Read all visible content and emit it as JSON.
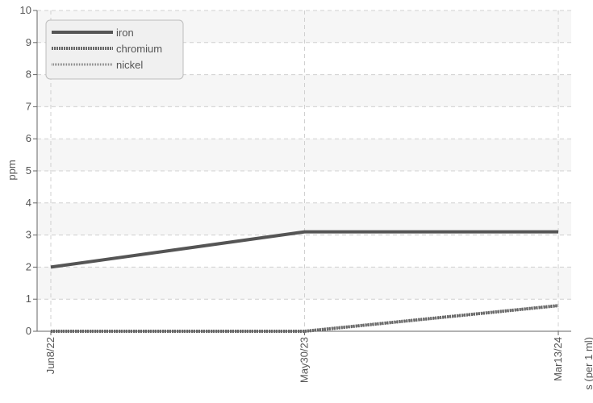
{
  "chart_data": {
    "type": "line",
    "title": "",
    "xlabel": "s (per 1 ml)",
    "ylabel": "ppm",
    "categories": [
      "Jun8/22",
      "May30/23",
      "Mar13/24"
    ],
    "ylim": [
      0,
      10
    ],
    "yticks": [
      0,
      1,
      2,
      3,
      4,
      5,
      6,
      7,
      8,
      9,
      10
    ],
    "grid": true,
    "legend_position": "top-left",
    "series": [
      {
        "name": "iron",
        "values": [
          2,
          3.1,
          3.1
        ],
        "color": "#555555",
        "style": "solid"
      },
      {
        "name": "chromium",
        "values": [
          0,
          0,
          0.8
        ],
        "color": "#666666",
        "style": "dotted-thick"
      },
      {
        "name": "nickel",
        "values": [
          0,
          0,
          0.8
        ],
        "color": "#888888",
        "style": "dotted"
      }
    ]
  }
}
